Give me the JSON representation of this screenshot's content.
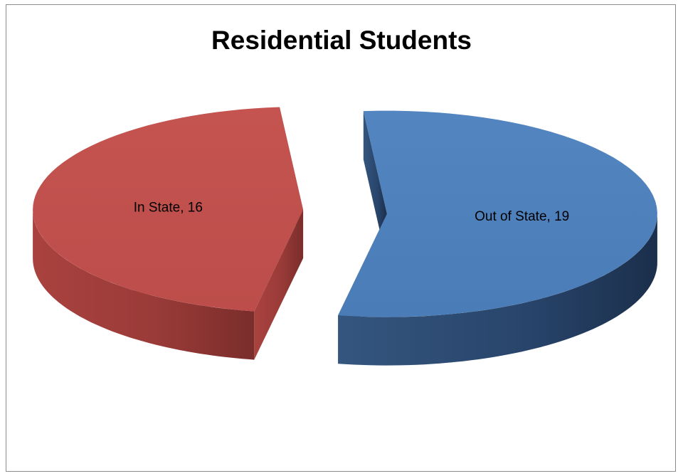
{
  "chart_data": {
    "type": "pie",
    "title": "Residential Students",
    "categories": [
      "In State",
      "Out of State"
    ],
    "values": [
      16,
      19
    ],
    "data_labels": [
      "In State, 16",
      "Out of State, 19"
    ],
    "colors": {
      "In State": "#c0504d",
      "Out of State": "#4f81bd"
    },
    "style": "3d-exploded",
    "legend": "none"
  }
}
